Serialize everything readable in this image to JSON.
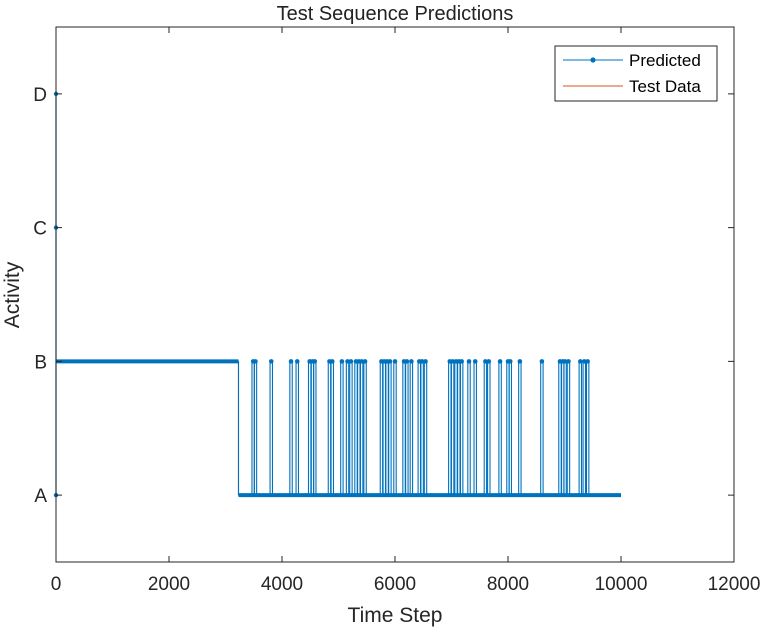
{
  "chart_data": {
    "type": "line",
    "title": "Test Sequence Predictions",
    "xlabel": "Time Step",
    "ylabel": "Activity",
    "xlim": [
      0,
      12000
    ],
    "ylim": [
      0.5,
      4.5
    ],
    "x_ticks": [
      0,
      2000,
      4000,
      6000,
      8000,
      10000,
      12000
    ],
    "y_ticks": [
      1,
      2,
      3,
      4
    ],
    "y_tick_labels": [
      "A",
      "B",
      "C",
      "D"
    ],
    "grid": false,
    "legend_position": "top-right",
    "x_end": 10000,
    "series": [
      {
        "name": "Predicted",
        "color": "#0072BD",
        "marker": "dot",
        "style": "step",
        "start_x": 0,
        "initial_spikes": [
          4,
          3,
          1
        ],
        "base_before_switch": 2,
        "switch_x": 3230,
        "base_after_switch": 1,
        "spikes_to_B_at_x": [
          3490,
          3530,
          3810,
          4160,
          4270,
          4490,
          4540,
          4580,
          4840,
          4890,
          5060,
          5160,
          5220,
          5310,
          5360,
          5410,
          5470,
          5760,
          5810,
          5860,
          5910,
          6000,
          6160,
          6210,
          6290,
          6430,
          6480,
          6540,
          6970,
          7020,
          7080,
          7130,
          7180,
          7310,
          7420,
          7600,
          7660,
          7860,
          8000,
          8040,
          8210,
          8600,
          8920,
          8970,
          9010,
          9070,
          9280,
          9350,
          9410
        ]
      },
      {
        "name": "Test Data",
        "color": "#D95319",
        "marker": "none",
        "style": "step",
        "segments": [
          {
            "x_from": 0,
            "x_to": 3230,
            "value": 2
          },
          {
            "x_from": 3230,
            "x_to": 10000,
            "value": 1
          }
        ]
      }
    ]
  }
}
